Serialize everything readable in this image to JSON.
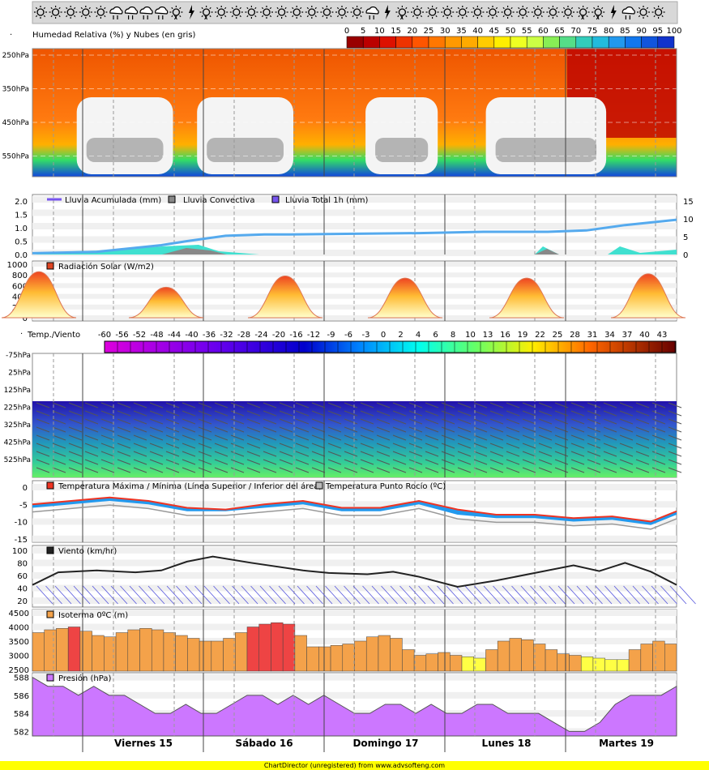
{
  "weather_icons": [
    "sun",
    "sun",
    "sun",
    "sun",
    "sun",
    "cloud-snow",
    "cloud-snow",
    "cloud-snow",
    "cloud-snow",
    "sun-snow",
    "lightning",
    "sun-snow",
    "sun",
    "sun",
    "sun",
    "sun",
    "sun",
    "sun",
    "sun",
    "sun",
    "sun",
    "sun",
    "cloud-snow",
    "lightning",
    "sun-snow",
    "sun",
    "sun",
    "sun",
    "sun",
    "sun",
    "sun",
    "sun",
    "sun",
    "sun",
    "sun",
    "sun",
    "sun-snow",
    "sun-snow",
    "lightning",
    "cloud-snow",
    "sun",
    "sun"
  ],
  "days": [
    "Viernes 15",
    "Sábado 16",
    "Domingo 17",
    "Lunes 18",
    "Martes 19"
  ],
  "credit": "ChartDirector (unregistered) from www.advsofteng.com",
  "colors": {
    "grid_bg": "#f0f0f0",
    "accent_blue": "#55aaee",
    "cloud_gray": "#aaaaaa",
    "rain_cyan": "#40e0d0",
    "isoterm_orange": "#f4a24a",
    "pressure_purple": "#cc77ff",
    "wind_line": "#222222"
  },
  "chart_data": [
    {
      "id": "humidity",
      "type": "heatmap",
      "title": "Humedad Relativa (%) y Nubes (en gris)",
      "colorscale_ticks": [
        "0",
        "5",
        "10",
        "15",
        "20",
        "25",
        "30",
        "35",
        "40",
        "45",
        "50",
        "55",
        "60",
        "65",
        "70",
        "75",
        "80",
        "85",
        "90",
        "95",
        "100"
      ],
      "y_ticks": [
        "250hPa",
        "350hPa",
        "450hPa",
        "550hPa"
      ],
      "levels": [
        250,
        350,
        450,
        550
      ],
      "clouds_approx": [
        {
          "from": 0.2,
          "to": 1.0
        },
        {
          "from": 1.2,
          "to": 2.0
        },
        {
          "from": 2.6,
          "to": 3.2
        },
        {
          "from": 3.6,
          "to": 4.6
        }
      ]
    },
    {
      "id": "rain",
      "type": "line",
      "legend": [
        "Lluvia Acumulada (mm)",
        "Lluvia Convectiva",
        "Lluvia Total 1h (mm)"
      ],
      "y_left_ticks": [
        "2.0",
        "1.5",
        "1.0",
        "0.5",
        "0.0"
      ],
      "y_right_ticks": [
        "15",
        "10",
        "5",
        "0"
      ],
      "ylim_left": [
        0,
        2
      ],
      "ylim_right": [
        0,
        15
      ],
      "x": [
        0,
        0.5,
        1,
        1.2,
        1.5,
        1.8,
        2,
        3,
        3.5,
        4,
        4.3,
        4.6,
        5
      ],
      "accumulated": [
        0.05,
        0.1,
        0.35,
        0.5,
        0.7,
        0.75,
        0.75,
        0.8,
        0.85,
        0.85,
        0.9,
        1.1,
        1.3
      ]
    },
    {
      "id": "solar",
      "type": "area",
      "legend": "Radiación Solar (W/m2)",
      "y_ticks": [
        "1000",
        "800",
        "600",
        "400",
        "200",
        "0"
      ],
      "ylim": [
        0,
        1000
      ],
      "peaks": [
        {
          "day": 0,
          "value": 860
        },
        {
          "day": 1,
          "value": 570
        },
        {
          "day": 2,
          "value": 780
        },
        {
          "day": 3,
          "value": 740
        },
        {
          "day": 4,
          "value": 740
        },
        {
          "day": 5,
          "value": 820
        }
      ]
    },
    {
      "id": "temp_wind",
      "type": "heatmap",
      "title": "Temp./Viento",
      "colorscale_ticks": [
        "-60",
        "-56",
        "-52",
        "-48",
        "-44",
        "-40",
        "-36",
        "-32",
        "-28",
        "-24",
        "-20",
        "-16",
        "-12",
        "-9",
        "-6",
        "-3",
        "0",
        "2",
        "4",
        "6",
        "8",
        "10",
        "13",
        "16",
        "19",
        "22",
        "25",
        "28",
        "31",
        "34",
        "37",
        "40",
        "43"
      ],
      "y_ticks": [
        "-75hPa",
        "25hPa",
        "125hPa",
        "225hPa",
        "325hPa",
        "425hPa",
        "525hPa"
      ]
    },
    {
      "id": "temperature",
      "type": "line",
      "legend": [
        "Temperatura Máxima / Mínima (Línea Superior / Inferior del área)",
        "Temperatura Punto Rocío (ºC)"
      ],
      "y_ticks": [
        "0",
        "-5",
        "-10",
        "-15"
      ],
      "ylim": [
        -16,
        0
      ],
      "x": [
        0,
        0.3,
        0.6,
        0.9,
        1.2,
        1.5,
        1.8,
        2.1,
        2.4,
        2.7,
        3.0,
        3.3,
        3.6,
        3.9,
        4.2,
        4.5,
        4.8,
        5.0
      ],
      "max": [
        -5,
        -4,
        -3,
        -4,
        -6,
        -6.5,
        -5,
        -4,
        -6,
        -6,
        -4,
        -6.5,
        -8,
        -8,
        -9,
        -8.5,
        -10,
        -7
      ],
      "min": [
        -6,
        -5,
        -4,
        -5,
        -7,
        -7,
        -6,
        -5,
        -7,
        -7,
        -5,
        -8,
        -9,
        -9,
        -10,
        -9.5,
        -11,
        -8
      ]
    },
    {
      "id": "wind",
      "type": "line",
      "legend": "Viento (km/hr)",
      "y_ticks": [
        "100",
        "80",
        "60",
        "40",
        "20"
      ],
      "ylim": [
        15,
        105
      ],
      "x": [
        0,
        0.2,
        0.5,
        0.8,
        1,
        1.2,
        1.4,
        1.7,
        2.1,
        2.3,
        2.6,
        2.8,
        3,
        3.3,
        3.6,
        3.9,
        4.2,
        4.4,
        4.6,
        4.8,
        5.0
      ],
      "values": [
        45,
        65,
        68,
        65,
        68,
        82,
        90,
        80,
        68,
        64,
        62,
        66,
        58,
        42,
        52,
        64,
        76,
        67,
        80,
        66,
        45
      ]
    },
    {
      "id": "isotherm",
      "type": "bar",
      "legend": "Isoterma 0ºC (m)",
      "y_ticks": [
        "4500",
        "4000",
        "3500",
        "3000",
        "2500"
      ],
      "ylim": [
        2500,
        4500
      ],
      "values": [
        3800,
        3900,
        3950,
        4000,
        3850,
        3700,
        3650,
        3800,
        3900,
        3950,
        3900,
        3800,
        3700,
        3600,
        3500,
        3500,
        3600,
        3800,
        4000,
        4100,
        4150,
        4100,
        3700,
        3300,
        3300,
        3350,
        3400,
        3500,
        3650,
        3700,
        3600,
        3200,
        3000,
        3050,
        3100,
        3000,
        2950,
        2900,
        3200,
        3500,
        3600,
        3550,
        3400,
        3200,
        3050,
        3000,
        2950,
        2900,
        2850,
        2850,
        3200,
        3400,
        3500,
        3400
      ]
    },
    {
      "id": "pressure",
      "type": "area",
      "legend": "Presión (hPa)",
      "y_ticks": [
        "588",
        "586",
        "584",
        "582"
      ],
      "ylim": [
        581.5,
        588.5
      ],
      "values": [
        588,
        587,
        587,
        586,
        587,
        586,
        586,
        585,
        584,
        584,
        585,
        584,
        584,
        585,
        586,
        586,
        585,
        586,
        585,
        586,
        585,
        584,
        584,
        585,
        585,
        584,
        585,
        584,
        584,
        585,
        585,
        584,
        584,
        584,
        583,
        582,
        582,
        583,
        585,
        586,
        586,
        586,
        587
      ]
    }
  ]
}
